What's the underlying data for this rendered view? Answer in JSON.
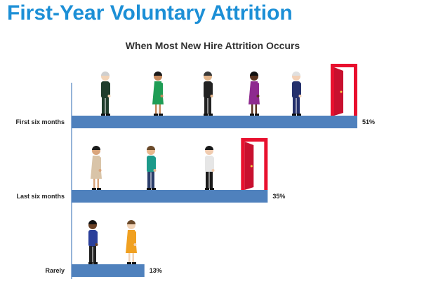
{
  "header": {
    "title": "First-Year Voluntary Attrition"
  },
  "colors": {
    "title": "#1c8fd6",
    "bar": "#4f81bd",
    "axis": "#4f81bd",
    "door": "#c8102e",
    "door_frame": "#e8102e"
  },
  "chart_data": {
    "type": "bar",
    "orientation": "horizontal",
    "title": "When Most New Hire Attrition Occurs",
    "categories": [
      "First six months",
      "Last six months",
      "Rarely"
    ],
    "values": [
      51,
      35,
      13
    ],
    "value_labels": [
      "51%",
      "35%",
      "13%"
    ],
    "unit": "%",
    "xlim": [
      0,
      58
    ],
    "grid": false,
    "legend": "none",
    "decorations": {
      "people_per_bar": [
        5,
        3,
        2
      ],
      "door_at_bar_end": [
        true,
        true,
        false
      ]
    }
  }
}
